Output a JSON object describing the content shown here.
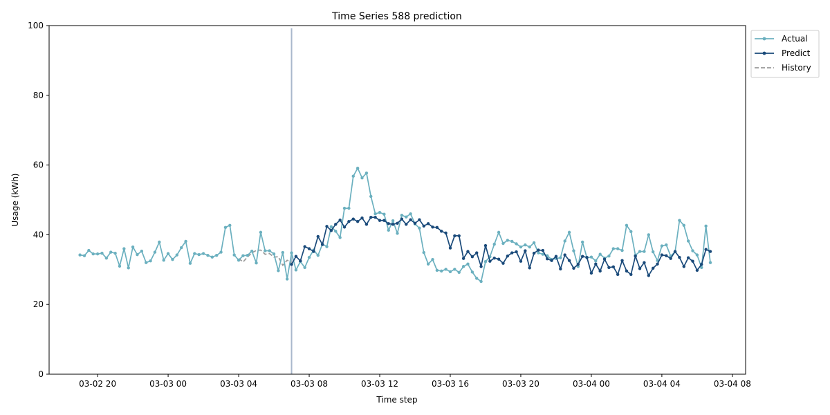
{
  "chart_data": {
    "type": "line",
    "title": "Time Series 588 prediction",
    "xlabel": "Time step",
    "ylabel": "Usage (kWh)",
    "ylim": [
      0,
      100
    ],
    "xlim": [
      "2024-03-02 17:15",
      "2024-03-04 08:45"
    ],
    "x_ticks": [
      {
        "x": "2024-03-02 20:00",
        "label": "03-02 20"
      },
      {
        "x": "2024-03-03 00:00",
        "label": "03-03 00"
      },
      {
        "x": "2024-03-03 04:00",
        "label": "03-03 04"
      },
      {
        "x": "2024-03-03 08:00",
        "label": "03-03 08"
      },
      {
        "x": "2024-03-03 12:00",
        "label": "03-03 12"
      },
      {
        "x": "2024-03-03 16:00",
        "label": "03-03 16"
      },
      {
        "x": "2024-03-03 20:00",
        "label": "03-03 20"
      },
      {
        "x": "2024-03-04 00:00",
        "label": "03-04 00"
      },
      {
        "x": "2024-03-04 04:00",
        "label": "03-04 04"
      },
      {
        "x": "2024-03-04 08:00",
        "label": "03-04 08"
      }
    ],
    "y_ticks": [
      0,
      20,
      40,
      60,
      80,
      100
    ],
    "grid": false,
    "legend_position": "outside-top-right",
    "forecast_start": "2024-03-03 07:00",
    "series": [
      {
        "name": "Actual",
        "color": "#6bb0bf",
        "marker": "dot",
        "x_start": "2024-03-02 19:00",
        "interval_minutes": 15,
        "values": [
          34.2,
          34.0,
          35.5,
          34.5,
          34.5,
          34.7,
          33.3,
          35.0,
          34.7,
          31.0,
          36.0,
          30.5,
          36.5,
          34.3,
          35.3,
          32.0,
          32.5,
          35.0,
          37.9,
          32.7,
          34.6,
          32.9,
          34.2,
          36.3,
          38.1,
          31.8,
          34.6,
          34.3,
          34.6,
          34.1,
          33.6,
          34.1,
          35.0,
          42.1,
          42.7,
          34.2,
          32.7,
          34.0,
          34.1,
          35.3,
          31.9,
          40.7,
          35.4,
          35.4,
          34.5,
          29.7,
          34.9,
          27.3,
          34.8,
          29.9,
          32.3,
          30.6,
          33.5,
          35.6,
          34.1,
          37.3,
          36.6,
          42.3,
          41.0,
          39.2,
          47.6,
          47.6,
          56.8,
          59.1,
          56.3,
          57.7,
          51.0,
          46.0,
          46.4,
          45.9,
          41.3,
          44.0,
          40.4,
          45.6,
          45.1,
          46.0,
          43.1,
          41.9,
          34.9,
          31.6,
          32.9,
          29.8,
          29.6,
          30.1,
          29.4,
          30.1,
          29.2,
          30.9,
          31.6,
          29.3,
          27.5,
          26.6,
          32.3,
          33.7,
          37.3,
          40.7,
          37.5,
          38.4,
          38.1,
          37.4,
          36.5,
          37.1,
          36.5,
          37.7,
          34.8,
          34.4,
          34.0,
          32.9,
          33.2,
          33.4,
          38.2,
          40.7,
          35.4,
          30.9,
          37.9,
          33.4,
          33.6,
          32.5,
          34.4,
          33.3,
          33.9,
          36.0,
          36.0,
          35.5,
          42.7,
          40.9,
          34.1,
          35.2,
          35.2,
          40.0,
          35.1,
          32.6,
          36.8,
          37.1,
          33.9,
          35.1,
          44.1,
          42.7,
          38.2,
          35.4,
          34.2,
          30.6,
          42.5,
          32.0
        ]
      },
      {
        "name": "Predict",
        "color": "#1a4a7a",
        "marker": "dot",
        "x_start": "2024-03-03 07:00",
        "interval_minutes": 15,
        "values": [
          31.5,
          33.8,
          32.5,
          36.6,
          36.0,
          35.2,
          39.5,
          37.2,
          42.4,
          41.2,
          43.0,
          44.2,
          42.2,
          43.8,
          44.5,
          43.8,
          44.8,
          43.0,
          45.0,
          45.0,
          44.1,
          44.1,
          43.2,
          43.0,
          43.3,
          44.5,
          43.0,
          44.3,
          43.3,
          44.3,
          42.5,
          43.2,
          42.2,
          42.1,
          41.0,
          40.5,
          36.2,
          39.7,
          39.7,
          33.2,
          35.2,
          33.7,
          34.8,
          30.9,
          36.9,
          32.4,
          33.3,
          33.0,
          31.8,
          33.9,
          34.8,
          35.1,
          32.4,
          35.4,
          30.5,
          34.7,
          35.6,
          35.5,
          33.1,
          32.6,
          33.8,
          30.2,
          34.2,
          32.6,
          30.4,
          31.5,
          33.8,
          33.5,
          29.0,
          31.6,
          29.6,
          33.0,
          30.6,
          30.8,
          28.6,
          32.6,
          29.6,
          28.6,
          33.9,
          30.3,
          32.0,
          28.3,
          30.4,
          31.6,
          34.2,
          34.0,
          33.2,
          35.2,
          33.5,
          30.9,
          33.4,
          32.4,
          29.8,
          31.5,
          35.8,
          35.2
        ]
      },
      {
        "name": "History",
        "color": "#999999",
        "marker": "none",
        "dashed": true,
        "x_start": "2024-03-03 04:00",
        "interval_minutes": 15,
        "values": [
          33.2,
          32.2,
          33.6,
          34.8,
          35.5,
          35.6,
          34.4,
          34.6,
          33.6,
          33.7,
          31.2,
          32.7,
          32.0
        ]
      }
    ]
  }
}
